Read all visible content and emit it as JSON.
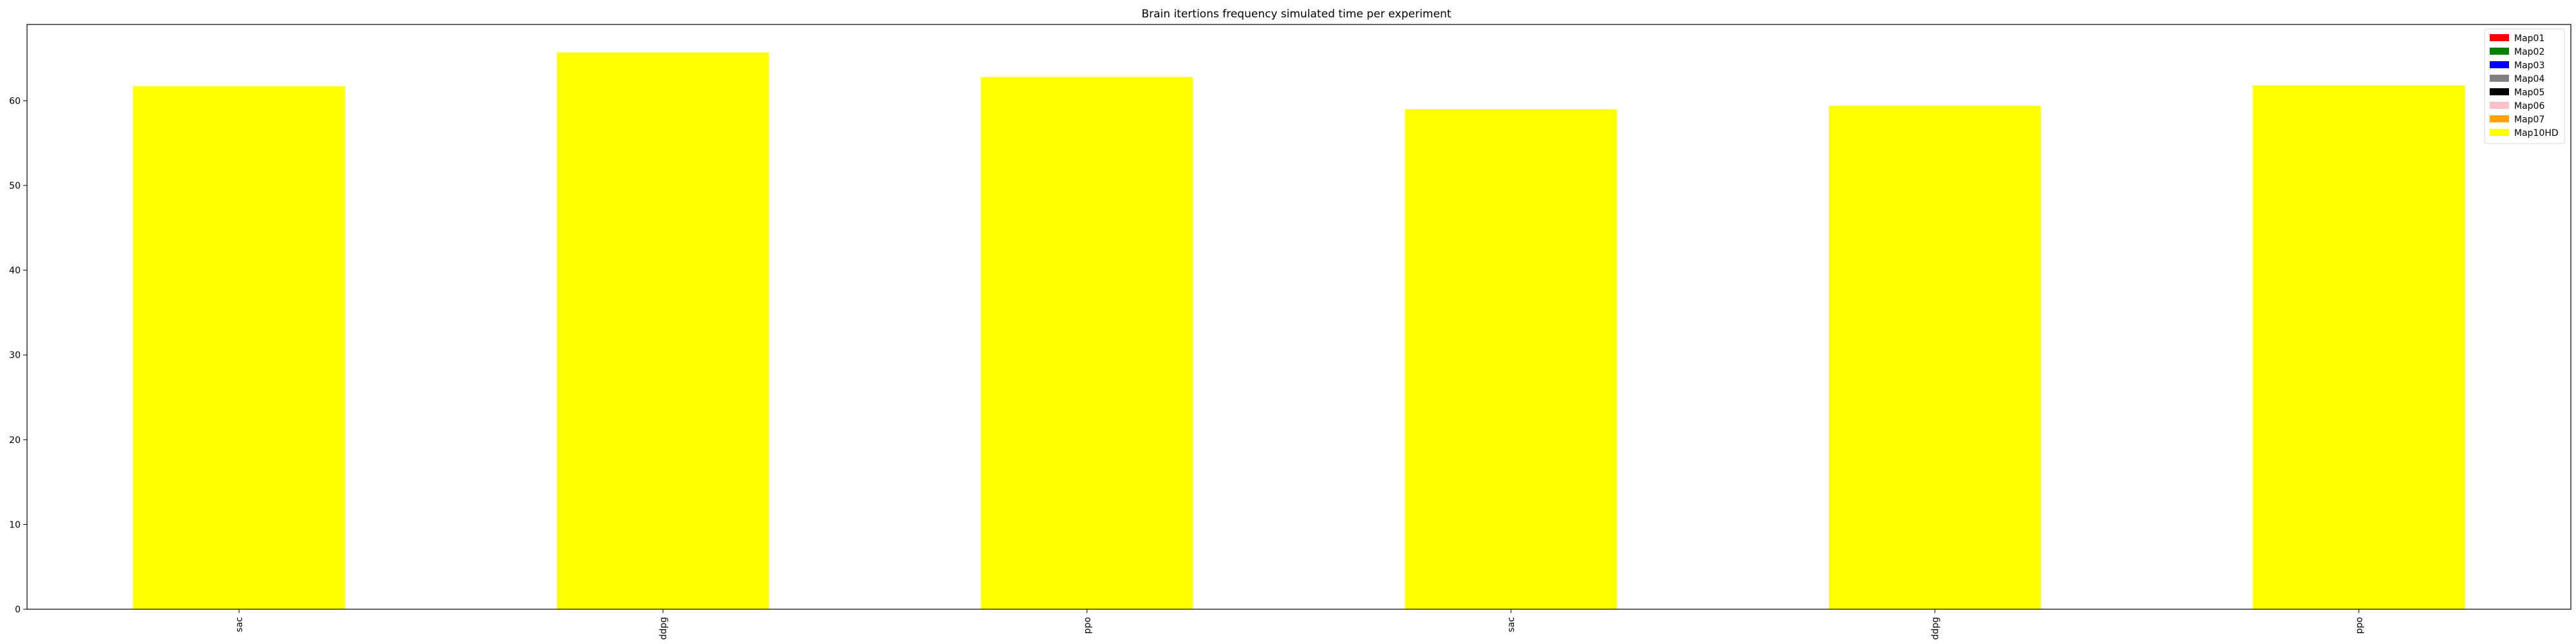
{
  "chart_data": {
    "type": "bar",
    "title": "Brain itertions frequency simulated time per experiment",
    "xlabel": "",
    "ylabel": "",
    "categories": [
      "sac",
      "ddpg",
      "ppo",
      "sac",
      "ddpg",
      "ppo"
    ],
    "ylim": [
      0,
      69
    ],
    "yticks": [
      0,
      10,
      20,
      30,
      40,
      50,
      60
    ],
    "grid": false,
    "legend_position": "top-right",
    "series": [
      {
        "name": "Map01",
        "color": "#ff0000",
        "values": [
          null,
          null,
          null,
          null,
          null,
          null
        ]
      },
      {
        "name": "Map02",
        "color": "#008000",
        "values": [
          null,
          null,
          null,
          null,
          null,
          null
        ]
      },
      {
        "name": "Map03",
        "color": "#0000ff",
        "values": [
          null,
          null,
          null,
          null,
          null,
          null
        ]
      },
      {
        "name": "Map04",
        "color": "#808080",
        "values": [
          null,
          null,
          null,
          null,
          null,
          null
        ]
      },
      {
        "name": "Map05",
        "color": "#000000",
        "values": [
          null,
          null,
          null,
          null,
          null,
          null
        ]
      },
      {
        "name": "Map06",
        "color": "#ffc0cb",
        "values": [
          null,
          null,
          null,
          null,
          null,
          null
        ]
      },
      {
        "name": "Map07",
        "color": "#ffa500",
        "values": [
          null,
          null,
          null,
          null,
          null,
          null
        ]
      },
      {
        "name": "Map10HD",
        "color": "#ffff00",
        "values": [
          61.7,
          65.7,
          62.8,
          59.0,
          59.4,
          61.8
        ]
      }
    ]
  }
}
